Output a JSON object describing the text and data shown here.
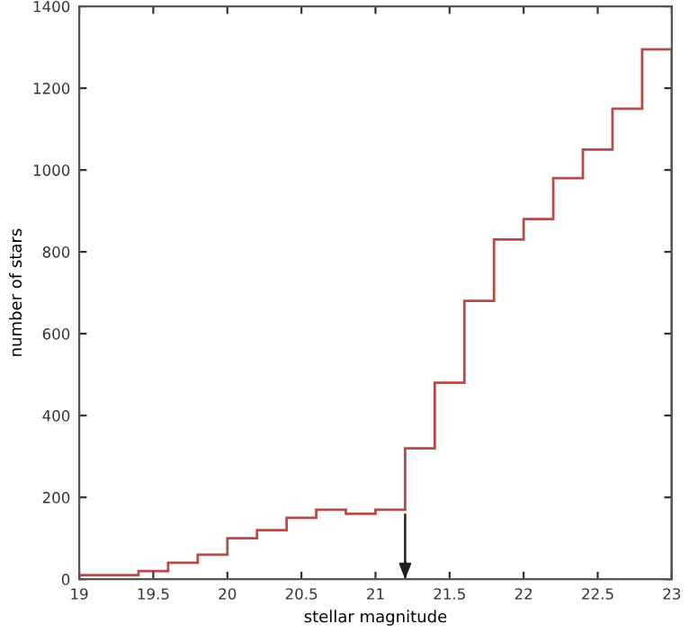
{
  "chart_data": {
    "type": "histogram",
    "xlabel": "stellar magnitude",
    "ylabel": "number of stars",
    "bins": [
      19.0,
      19.2,
      19.4,
      19.6,
      19.8,
      20.0,
      20.2,
      20.4,
      20.6,
      20.8,
      21.0,
      21.2,
      21.4,
      21.6,
      21.8,
      22.0,
      22.2,
      22.4,
      22.6,
      22.8,
      23.0
    ],
    "values": [
      10,
      10,
      20,
      40,
      60,
      100,
      120,
      150,
      170,
      160,
      170,
      320,
      480,
      680,
      830,
      880,
      980,
      1050,
      1150,
      1295
    ],
    "color": "#b84a4a",
    "ref_lines": [
      {
        "axis": "x",
        "value": 21.2,
        "color": "#202020"
      }
    ],
    "xlim": [
      19,
      23
    ],
    "xticks": [
      19,
      19.5,
      20,
      20.5,
      21,
      21.5,
      22,
      22.5,
      23
    ],
    "ylim": [
      0,
      1400
    ],
    "yticks": [
      0,
      200,
      400,
      600,
      800,
      1000,
      1200,
      1400
    ],
    "grid": false
  }
}
